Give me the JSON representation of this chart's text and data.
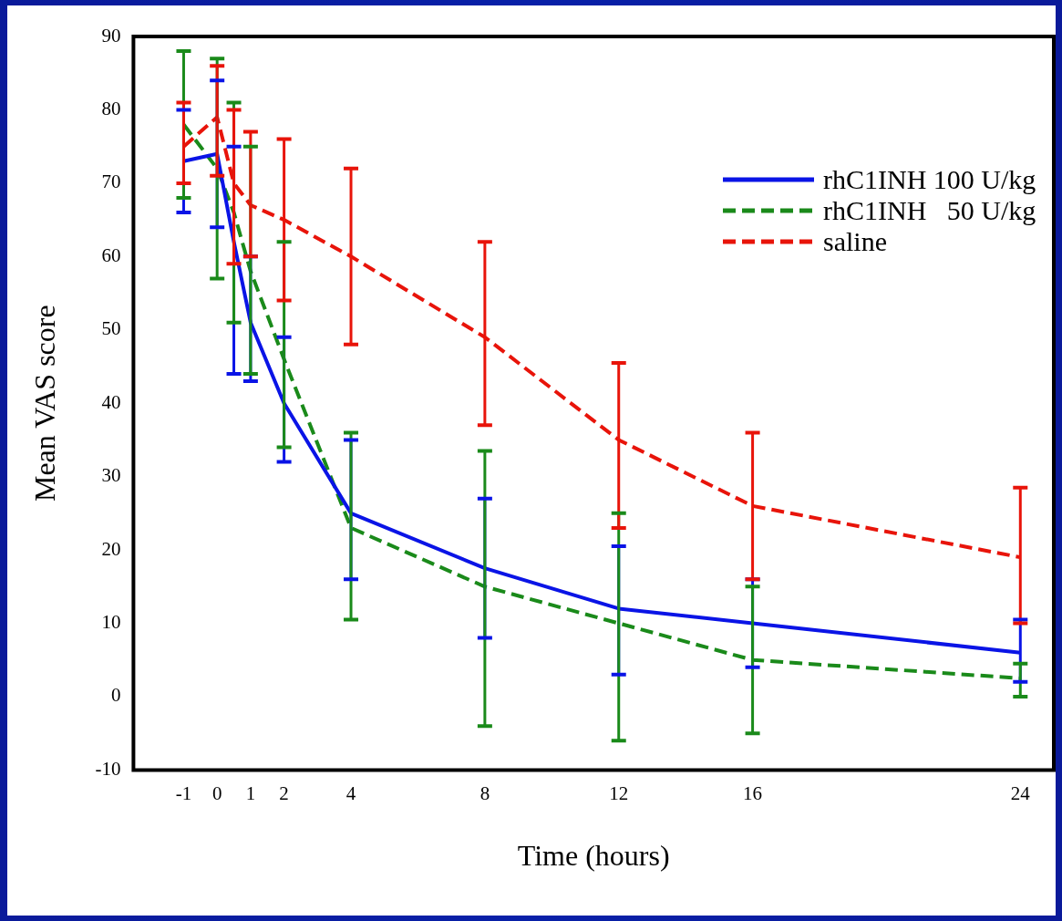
{
  "chart_data": {
    "type": "line",
    "xlabel": "Time (hours)",
    "ylabel": "Mean VAS score",
    "x": [
      -1,
      0,
      0.5,
      1,
      2,
      4,
      8,
      12,
      16,
      24
    ],
    "xlim": [
      -2.5,
      25
    ],
    "xticks": [
      -1,
      0,
      1,
      2,
      4,
      8,
      12,
      16,
      24
    ],
    "ylim": [
      -10,
      90
    ],
    "yticks": [
      -10,
      0,
      10,
      20,
      30,
      40,
      50,
      60,
      70,
      80,
      90
    ],
    "grid": false,
    "legend": "top right",
    "marker": "none",
    "series": [
      {
        "name": "rhC1INH 100 U/kg",
        "color": "#0a14e6",
        "line_style": "solid",
        "values": [
          73,
          74,
          62,
          51,
          40,
          25,
          17.5,
          12,
          10,
          6
        ],
        "errors": [
          [
            66,
            80
          ],
          [
            64,
            84
          ],
          [
            44,
            75
          ],
          [
            43,
            60
          ],
          [
            32,
            49
          ],
          [
            16,
            35
          ],
          [
            8,
            27
          ],
          [
            3,
            20.5
          ],
          [
            4,
            16
          ],
          [
            2,
            10.5
          ]
        ]
      },
      {
        "name": "rhC1INH   50 U/kg",
        "color": "#1a8a1a",
        "line_style": "dashed",
        "values": [
          78,
          72,
          66,
          58,
          46,
          23,
          15,
          10,
          5,
          2.5
        ],
        "errors": [
          [
            68,
            88
          ],
          [
            57,
            87
          ],
          [
            51,
            81
          ],
          [
            44,
            75
          ],
          [
            34,
            62
          ],
          [
            10.5,
            36
          ],
          [
            -4,
            33.5
          ],
          [
            -6,
            25
          ],
          [
            -5,
            15
          ],
          [
            0,
            4.5
          ]
        ]
      },
      {
        "name": "saline",
        "color": "#e8140a",
        "line_style": "dashed",
        "values": [
          75,
          79,
          70,
          67,
          65,
          60,
          49,
          35,
          26,
          19
        ],
        "errors": [
          [
            70,
            81
          ],
          [
            71,
            86
          ],
          [
            59,
            80
          ],
          [
            60,
            77
          ],
          [
            54,
            76
          ],
          [
            48,
            72
          ],
          [
            37,
            62
          ],
          [
            23,
            45.5
          ],
          [
            16,
            36
          ],
          [
            10,
            28.5
          ]
        ]
      }
    ]
  }
}
